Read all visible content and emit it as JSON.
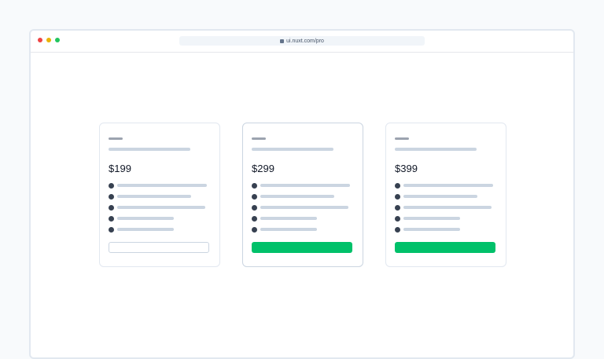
{
  "browser": {
    "url": "ui.nuxt.com/pro",
    "traffic_lights": [
      "#ef4444",
      "#eab308",
      "#22c55e"
    ]
  },
  "accent": "#00c16a",
  "plans": [
    {
      "price": "$199",
      "button_style": "outline",
      "highlighted": false
    },
    {
      "price": "$299",
      "button_style": "solid",
      "highlighted": true
    },
    {
      "price": "$399",
      "button_style": "solid",
      "highlighted": false
    }
  ]
}
